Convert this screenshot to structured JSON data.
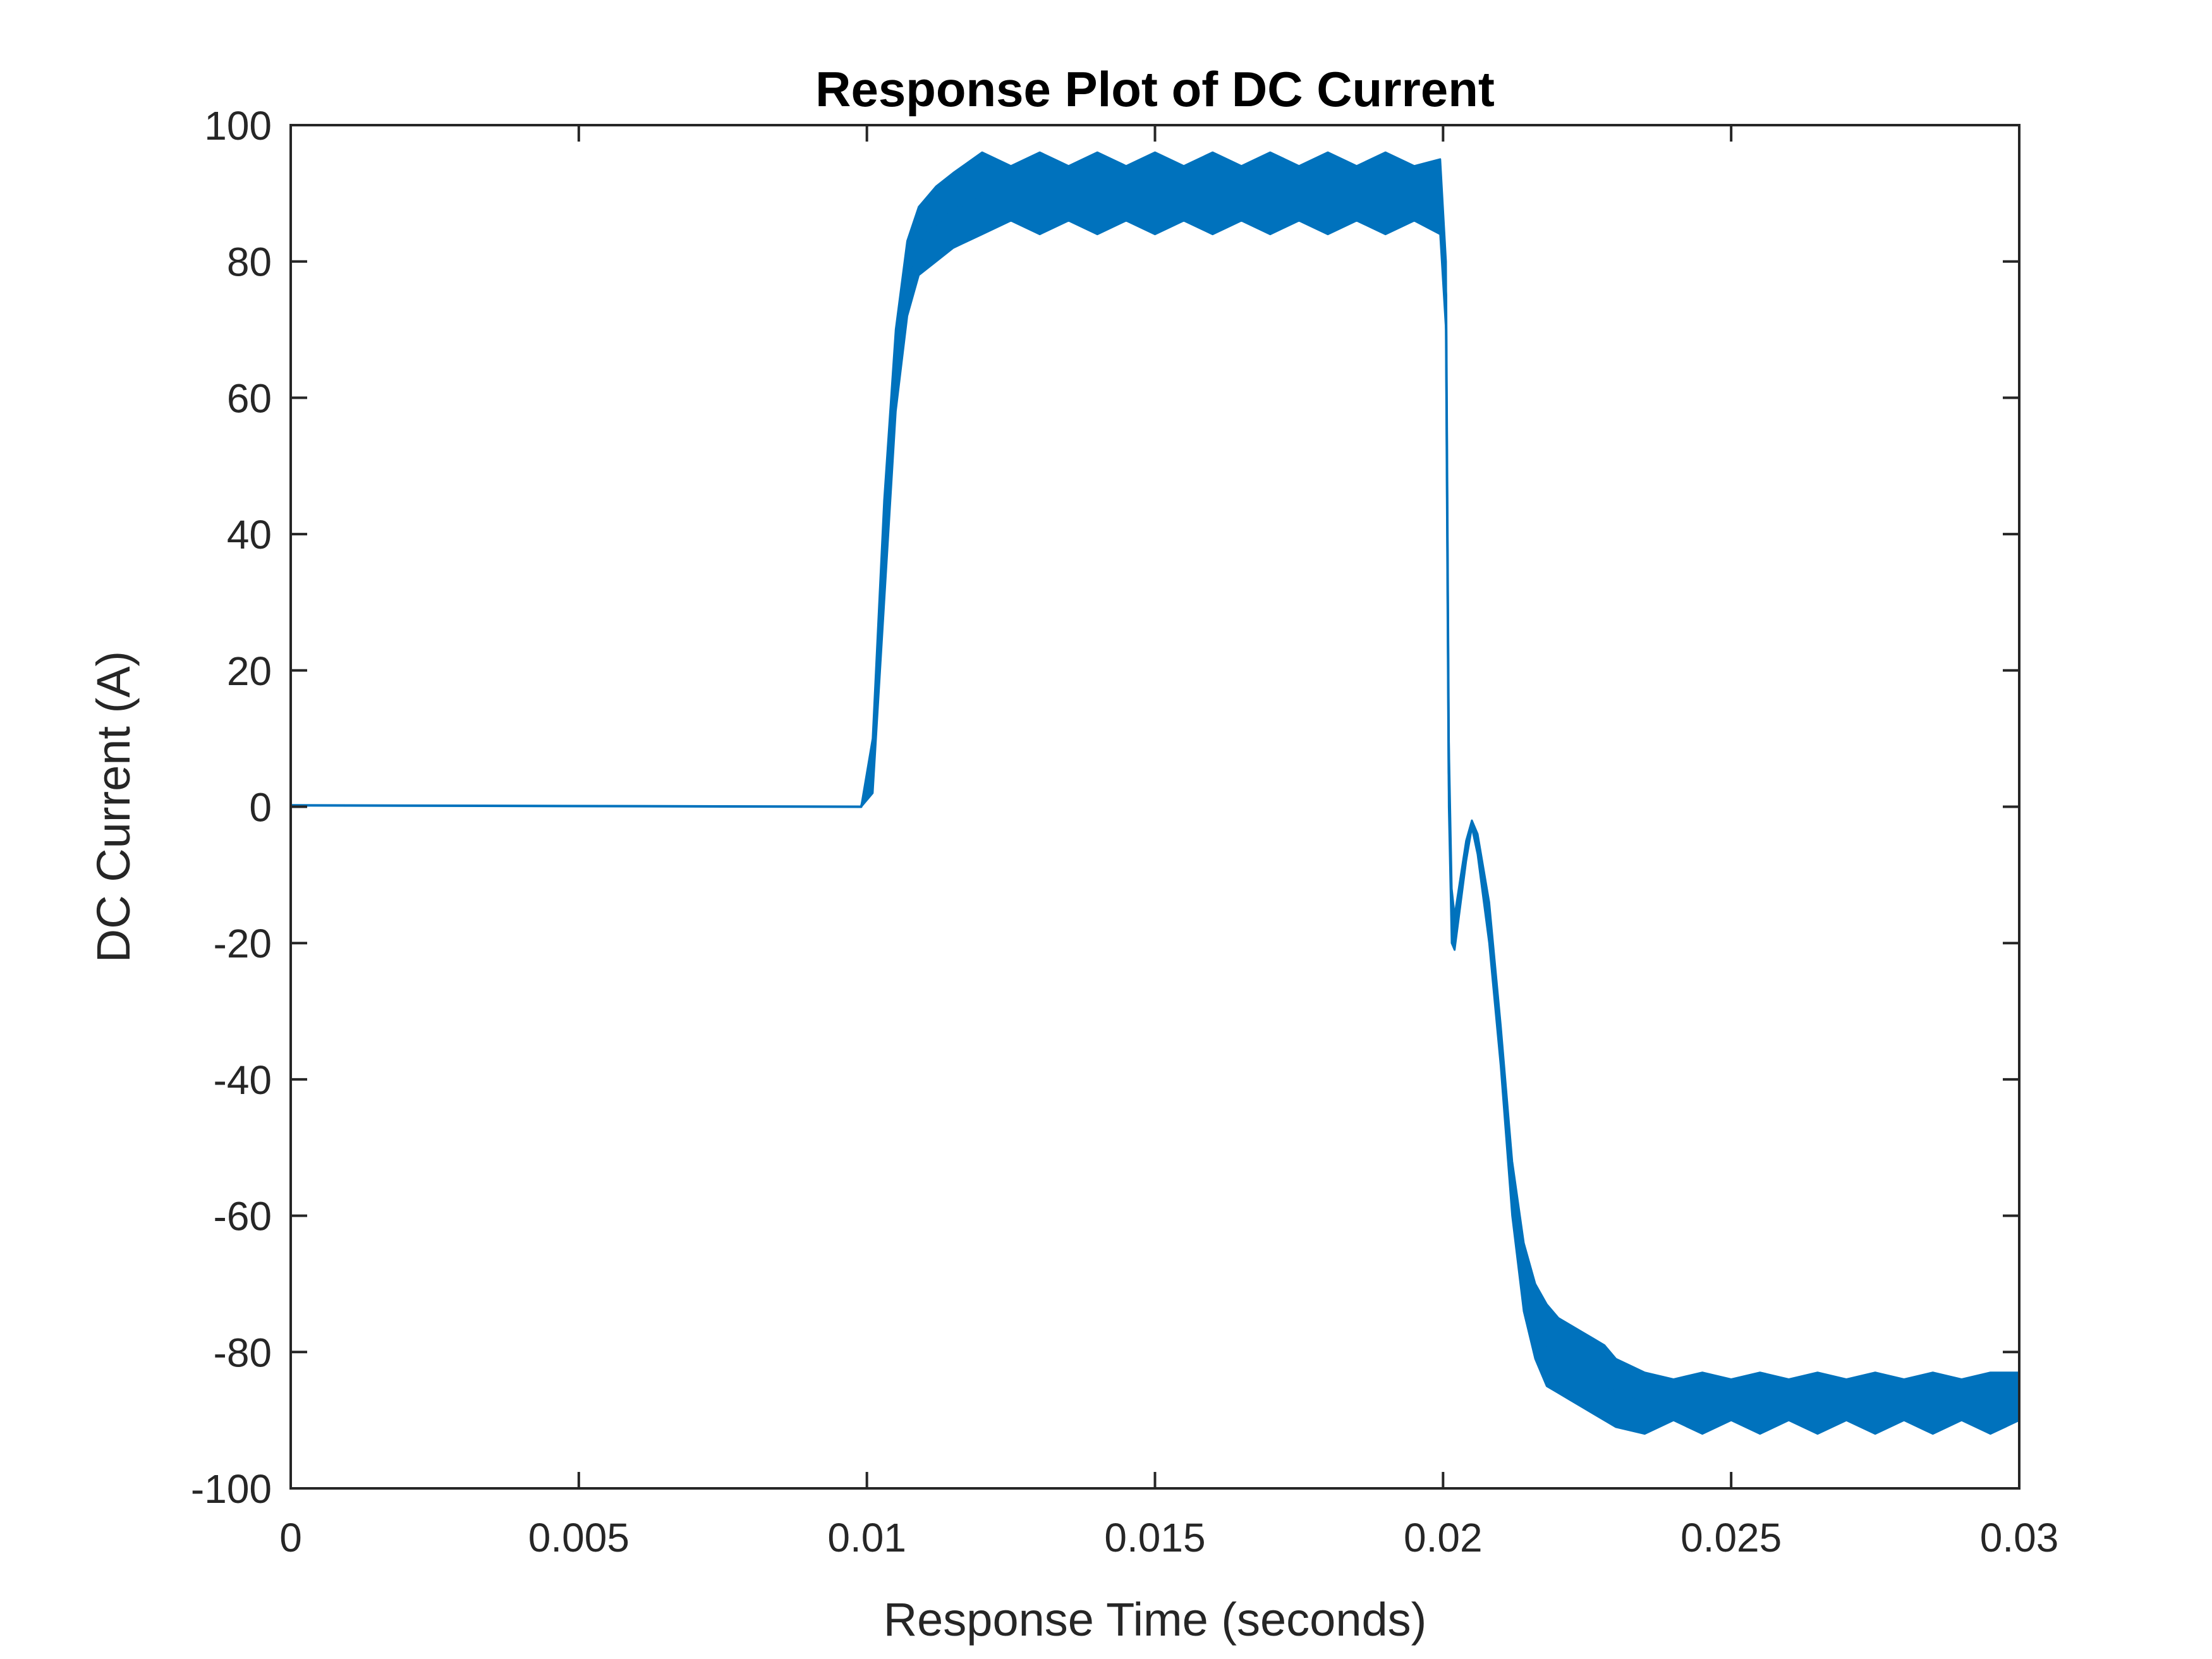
{
  "chart_data": {
    "type": "line",
    "title": "Response Plot of DC Current",
    "xlabel": "Response Time (seconds)",
    "ylabel": "DC Current (A)",
    "xlim": [
      0,
      0.03
    ],
    "ylim": [
      -100,
      100
    ],
    "x_ticks": [
      0,
      0.005,
      0.01,
      0.015,
      0.02,
      0.025,
      0.03
    ],
    "x_tick_labels": [
      "0",
      "0.005",
      "0.01",
      "0.015",
      "0.02",
      "0.025",
      "0.03"
    ],
    "y_ticks": [
      -100,
      -80,
      -60,
      -40,
      -20,
      0,
      20,
      40,
      60,
      80,
      100
    ],
    "y_tick_labels": [
      "-100",
      "-80",
      "-60",
      "-40",
      "-20",
      "0",
      "20",
      "40",
      "60",
      "80",
      "100"
    ],
    "grid": false,
    "legend": "none",
    "series": [
      {
        "color": "#0072BD",
        "envelope": {
          "x": [
            0.0,
            0.0099,
            0.0101,
            0.0103,
            0.0105,
            0.0107,
            0.0109,
            0.0112,
            0.0115,
            0.012,
            0.0125,
            0.013,
            0.0135,
            0.014,
            0.0145,
            0.015,
            0.0155,
            0.016,
            0.0165,
            0.017,
            0.0175,
            0.018,
            0.0185,
            0.019,
            0.0195,
            0.01995,
            0.02005,
            0.0201,
            0.02015,
            0.0202,
            0.0204,
            0.0205,
            0.0206,
            0.0208,
            0.021,
            0.0212,
            0.0214,
            0.0216,
            0.0218,
            0.022,
            0.0222,
            0.0224,
            0.0226,
            0.0228,
            0.023,
            0.0235,
            0.024,
            0.0245,
            0.025,
            0.0255,
            0.026,
            0.0265,
            0.027,
            0.0275,
            0.028,
            0.0285,
            0.029,
            0.0295,
            0.03
          ],
          "upper": [
            0.2,
            0.0,
            10.0,
            45.0,
            70.0,
            83.0,
            88.0,
            91.0,
            93.0,
            96.0,
            94.0,
            96.0,
            94.0,
            96.0,
            94.0,
            96.0,
            94.0,
            96.0,
            94.0,
            96.0,
            94.0,
            96.0,
            94.0,
            96.0,
            94.0,
            95.0,
            80.0,
            10.0,
            -12.0,
            -16.0,
            -5.0,
            -2.0,
            -4.0,
            -14.0,
            -32.0,
            -52.0,
            -64.0,
            -70.0,
            -73.0,
            -75.0,
            -76.0,
            -77.0,
            -78.0,
            -79.0,
            -81.0,
            -83.0,
            -84.0,
            -83.0,
            -84.0,
            -83.0,
            -84.0,
            -83.0,
            -84.0,
            -83.0,
            -84.0,
            -83.0,
            -84.0,
            -83.0,
            -83.0
          ],
          "lower": [
            0.2,
            0.0,
            2.0,
            30.0,
            58.0,
            72.0,
            78.0,
            80.0,
            82.0,
            84.0,
            86.0,
            84.0,
            86.0,
            84.0,
            86.0,
            84.0,
            86.0,
            84.0,
            86.0,
            84.0,
            86.0,
            84.0,
            86.0,
            84.0,
            86.0,
            84.0,
            70.0,
            0.0,
            -20.0,
            -21.0,
            -8.0,
            -3.0,
            -7.0,
            -20.0,
            -38.0,
            -60.0,
            -74.0,
            -81.0,
            -85.0,
            -86.0,
            -87.0,
            -88.0,
            -89.0,
            -90.0,
            -91.0,
            -92.0,
            -90.0,
            -92.0,
            -90.0,
            -92.0,
            -90.0,
            -92.0,
            -90.0,
            -92.0,
            -90.0,
            -92.0,
            -90.0,
            -92.0,
            -90.0
          ]
        }
      }
    ]
  }
}
